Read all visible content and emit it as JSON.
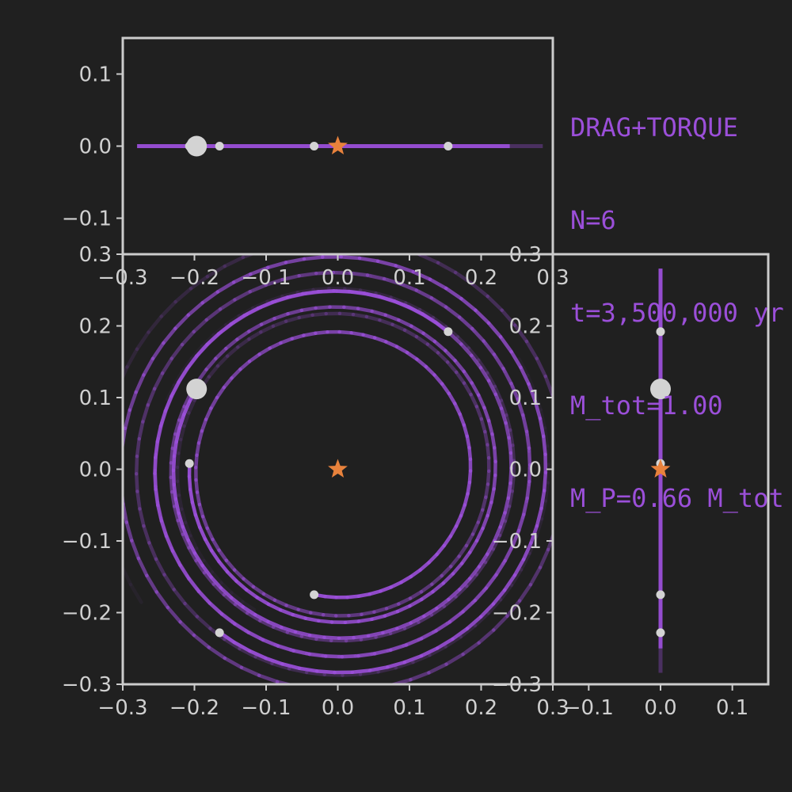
{
  "info": {
    "line1": "DRAG+TORQUE",
    "line2": "N=6",
    "line3": "t=3,500,000 yr",
    "line4": "M_tot=1.00",
    "line5": "M_P=0.66 M_tot"
  },
  "colors": {
    "background": "#202020",
    "frame": "#cccccc",
    "trail": "#9b4fd9",
    "body": "#d3d3d3",
    "star": "#e8823c",
    "text": "#9b4fd9",
    "tick": "#d0d0d0"
  },
  "chart_data": [
    {
      "type": "scatter",
      "panel": "top-xz",
      "xlim": [
        -0.3,
        0.3
      ],
      "ylim": [
        -0.15,
        0.15
      ],
      "xticks": [
        "−0.3",
        "−0.2",
        "−0.1",
        "0.0",
        "0.1",
        "0.2",
        "0.3"
      ],
      "yticks": [
        "0.1",
        "0.0",
        "−0.1"
      ],
      "xtick_values": [
        -0.3,
        -0.2,
        -0.1,
        0.0,
        0.1,
        0.2,
        0.3
      ],
      "ytick_values": [
        0.1,
        0.0,
        -0.1
      ]
    },
    {
      "type": "line",
      "panel": "main-xy",
      "xlim": [
        -0.3,
        0.3
      ],
      "ylim": [
        -0.3,
        0.3
      ],
      "xticks": [
        "−0.3",
        "−0.2",
        "−0.1",
        "0.0",
        "0.1",
        "0.2",
        "0.3"
      ],
      "yticks": [
        "0.3",
        "0.2",
        "0.1",
        "0.0",
        "−0.1",
        "−0.2",
        "−0.3"
      ],
      "xtick_values": [
        -0.3,
        -0.2,
        -0.1,
        0.0,
        0.1,
        0.2,
        0.3
      ],
      "ytick_values": [
        0.3,
        0.2,
        0.1,
        0.0,
        -0.1,
        -0.2,
        -0.3
      ],
      "star": {
        "x": 0.0,
        "y": 0.0
      },
      "bodies": [
        {
          "x": -0.197,
          "y": 0.112,
          "z": 0.0,
          "size": "large",
          "r": 0.227,
          "angle": 150.4
        },
        {
          "x": -0.165,
          "y": -0.228,
          "z": 0.0,
          "size": "small",
          "r": 0.281,
          "angle": 234.1
        },
        {
          "x": -0.033,
          "y": -0.175,
          "z": 0.0,
          "size": "small",
          "r": 0.178,
          "angle": 259.3
        },
        {
          "x": 0.154,
          "y": 0.192,
          "z": 0.0,
          "size": "small",
          "r": 0.246,
          "angle": 51.3
        },
        {
          "x": -0.207,
          "y": 0.008,
          "z": 0.0,
          "size": "small",
          "r": 0.207,
          "angle": 177.8
        }
      ]
    },
    {
      "type": "scatter",
      "panel": "right-zy",
      "xlim": [
        -0.15,
        0.15
      ],
      "ylim": [
        -0.3,
        0.3
      ],
      "xticks": [
        "−0.1",
        "0.0",
        "0.1"
      ],
      "yticks": [
        "0.3",
        "0.2",
        "0.1",
        "0.0",
        "−0.1",
        "−0.2",
        "−0.3"
      ],
      "xtick_values": [
        -0.1,
        0.0,
        0.1
      ],
      "ytick_values": [
        0.3,
        0.2,
        0.1,
        0.0,
        -0.1,
        -0.2,
        -0.3
      ]
    }
  ]
}
